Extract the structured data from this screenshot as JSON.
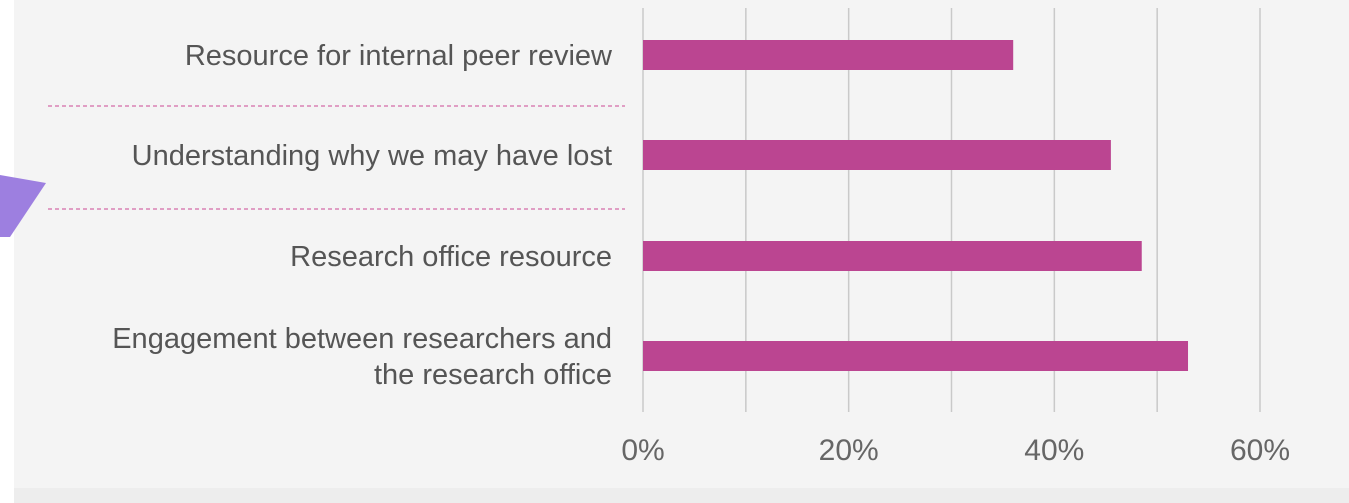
{
  "chart_data": {
    "type": "bar",
    "orientation": "horizontal",
    "categories": [
      [
        "Resource for internal peer review"
      ],
      [
        "Understanding why we may have lost"
      ],
      [
        "Research office resource"
      ],
      [
        "Engagement between researchers and",
        "the research office"
      ]
    ],
    "values": [
      36,
      45.5,
      48.5,
      53
    ],
    "unit": "%",
    "xlim": [
      0,
      60
    ],
    "xticks": [
      "0%",
      "20%",
      "40%",
      "60%"
    ],
    "xtick_values": [
      0,
      20,
      40,
      60
    ],
    "gridline_values": [
      0,
      10,
      20,
      30,
      40,
      50,
      60
    ],
    "grid": true,
    "title": "",
    "xlabel": "",
    "ylabel": "",
    "legend": "none",
    "colors": {
      "bar": "#bb4591",
      "background": "#f4f4f4",
      "gridline": "#c9c9c9",
      "separator": "#d46aa8",
      "accent_arrow": "#9d7fe0",
      "label_text": "#555555",
      "tick_text": "#666666"
    }
  }
}
